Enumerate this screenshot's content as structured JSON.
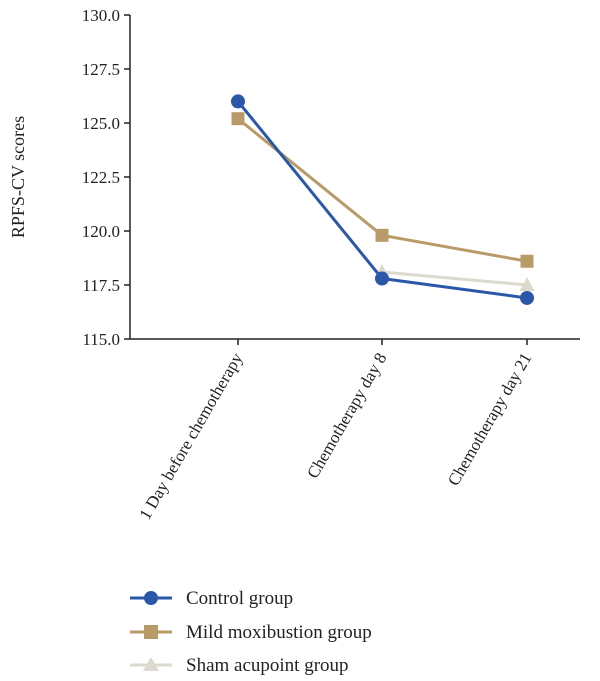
{
  "chart_data": {
    "type": "line",
    "title": "",
    "xlabel": "",
    "ylabel": "RPFS-CV scores",
    "categories": [
      "1 Day before chemotherapy",
      "Chemotherapy day 8",
      "Chemotherapy day 21"
    ],
    "ylim": [
      115.0,
      130.0
    ],
    "yticks": [
      "115.0",
      "117.5",
      "120.0",
      "122.5",
      "125.0",
      "127.5",
      "130.0"
    ],
    "grid": false,
    "legend_position": "bottom",
    "series": [
      {
        "name": "Control group",
        "values": [
          126.0,
          117.8,
          116.9
        ],
        "color": "#2a57a8",
        "marker": "circle"
      },
      {
        "name": "Mild moxibustion group",
        "values": [
          125.2,
          119.8,
          118.6
        ],
        "color": "#b89b68",
        "marker": "square"
      },
      {
        "name": "Sham acupoint group",
        "values": [
          null,
          118.1,
          117.5
        ],
        "color": "#dcd9cf",
        "marker": "triangle"
      }
    ]
  }
}
